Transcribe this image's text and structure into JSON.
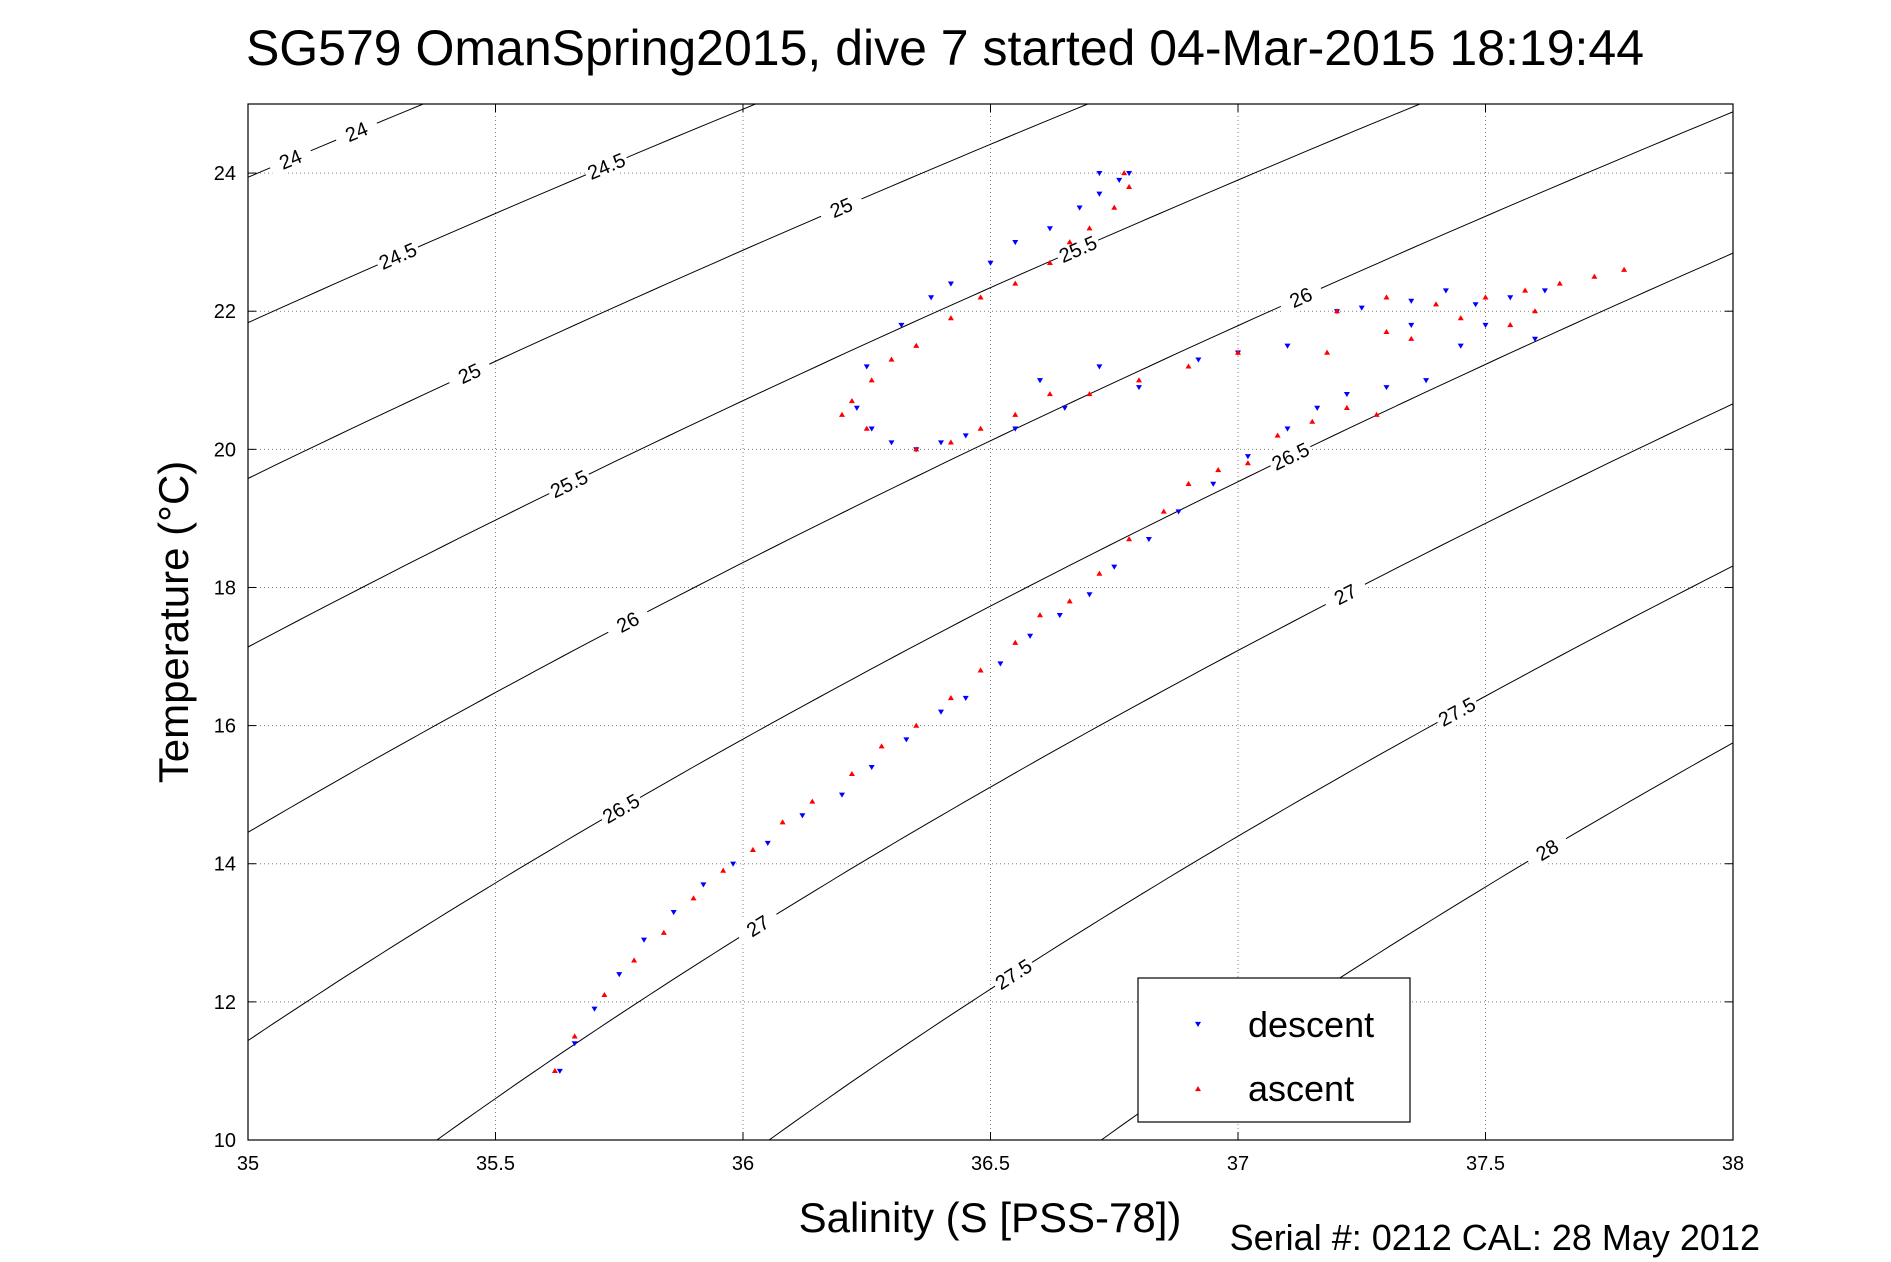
{
  "chart_data": {
    "type": "scatter",
    "title": "SG579 OmanSpring2015, dive 7 started 04-Mar-2015 18:19:44",
    "xlabel": "Salinity (S [PSS-78])",
    "ylabel": "Temperature (°C)",
    "footer": "Serial #: 0212  CAL: 28 May 2012",
    "xlim": [
      35,
      38
    ],
    "ylim": [
      10,
      25
    ],
    "x_ticks": [
      "35",
      "35.5",
      "36",
      "36.5",
      "37",
      "37.5",
      "38"
    ],
    "y_ticks": [
      "10",
      "12",
      "14",
      "16",
      "18",
      "20",
      "22",
      "24"
    ],
    "grid": true,
    "legend_position": "bottom-right",
    "series": [
      {
        "name": "descent",
        "color": "#0000ff",
        "marker": "triangle-down",
        "x": [
          35.63,
          35.66,
          35.7,
          35.75,
          35.8,
          35.86,
          35.92,
          35.98,
          36.05,
          36.12,
          36.2,
          36.26,
          36.33,
          36.4,
          36.45,
          36.52,
          36.58,
          36.64,
          36.7,
          36.75,
          36.82,
          36.88,
          36.95,
          37.02,
          37.1,
          37.16,
          37.22,
          37.3,
          37.38,
          37.2,
          37.25,
          37.35,
          37.42,
          37.48,
          37.55,
          37.62,
          37.45,
          37.6,
          37.5,
          37.35,
          37.1,
          37.0,
          36.92,
          36.8,
          36.72,
          36.65,
          36.6,
          36.55,
          36.45,
          36.4,
          36.35,
          36.3,
          36.26,
          36.23,
          36.25,
          36.32,
          36.38,
          36.42,
          36.5,
          36.55,
          36.62,
          36.68,
          36.72,
          36.76,
          36.78,
          36.72
        ],
        "y": [
          11.0,
          11.4,
          11.9,
          12.4,
          12.9,
          13.3,
          13.7,
          14.0,
          14.3,
          14.7,
          15.0,
          15.4,
          15.8,
          16.2,
          16.4,
          16.9,
          17.3,
          17.6,
          17.9,
          18.3,
          18.7,
          19.1,
          19.5,
          19.9,
          20.3,
          20.6,
          20.8,
          20.9,
          21.0,
          22.0,
          22.05,
          22.15,
          22.3,
          22.1,
          22.2,
          22.3,
          21.5,
          21.6,
          21.8,
          21.8,
          21.5,
          21.4,
          21.3,
          20.9,
          21.2,
          20.6,
          21.0,
          20.3,
          20.2,
          20.1,
          20.0,
          20.1,
          20.3,
          20.6,
          21.2,
          21.8,
          22.2,
          22.4,
          22.7,
          23.0,
          23.2,
          23.5,
          23.7,
          23.9,
          24.0,
          24.0
        ]
      },
      {
        "name": "ascent",
        "color": "#ff0000",
        "marker": "triangle-up",
        "x": [
          35.62,
          35.66,
          35.72,
          35.78,
          35.84,
          35.9,
          35.96,
          36.02,
          36.08,
          36.14,
          36.22,
          36.28,
          36.35,
          36.42,
          36.48,
          36.55,
          36.6,
          36.66,
          36.72,
          36.78,
          36.85,
          36.9,
          36.96,
          37.02,
          37.08,
          37.15,
          37.22,
          37.28,
          37.2,
          37.3,
          37.4,
          37.5,
          37.58,
          37.65,
          37.72,
          37.78,
          37.6,
          37.55,
          37.45,
          37.35,
          37.3,
          37.18,
          37.0,
          36.9,
          36.8,
          36.7,
          36.62,
          36.55,
          36.48,
          36.42,
          36.35,
          36.25,
          36.2,
          36.22,
          36.26,
          36.3,
          36.35,
          36.42,
          36.48,
          36.55,
          36.62,
          36.66,
          36.7,
          36.75,
          36.78,
          36.77
        ],
        "y": [
          11.0,
          11.5,
          12.1,
          12.6,
          13.0,
          13.5,
          13.9,
          14.2,
          14.6,
          14.9,
          15.3,
          15.7,
          16.0,
          16.4,
          16.8,
          17.2,
          17.6,
          17.8,
          18.2,
          18.7,
          19.1,
          19.5,
          19.7,
          19.8,
          20.2,
          20.4,
          20.6,
          20.5,
          22.0,
          22.2,
          22.1,
          22.2,
          22.3,
          22.4,
          22.5,
          22.6,
          22.0,
          21.8,
          21.9,
          21.6,
          21.7,
          21.4,
          21.4,
          21.2,
          21.0,
          20.8,
          20.8,
          20.5,
          20.3,
          20.1,
          20.0,
          20.3,
          20.5,
          20.7,
          21.0,
          21.3,
          21.5,
          21.9,
          22.2,
          22.4,
          22.7,
          23.0,
          23.2,
          23.5,
          23.8,
          24.0
        ]
      }
    ],
    "contour_lines": [
      24,
      24.5,
      25,
      25.5,
      26,
      26.5,
      27,
      27.5,
      28
    ]
  }
}
